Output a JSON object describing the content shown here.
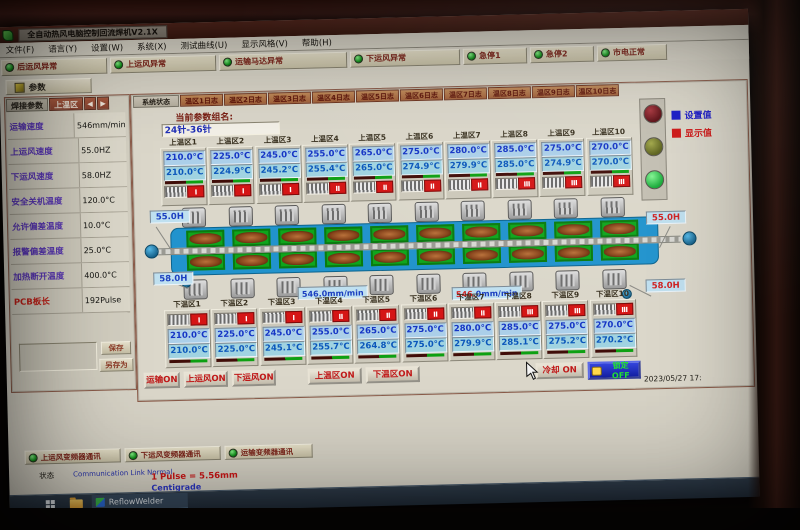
{
  "window": {
    "title": "全自动热风电脑控制回流焊机V2.1X",
    "menu_items": [
      "文件(F)",
      "语言(Y)",
      "设置(W)",
      "系统(X)",
      "测试曲线(U)",
      "显示风格(V)",
      "帮助(H)"
    ],
    "alarm_buttons": [
      "后运风异常",
      "上运风异常",
      "运输马达异常",
      "下运风异常",
      "急停1",
      "急停2",
      "市电正常"
    ],
    "params_button": "参数"
  },
  "icons": {
    "arrow_left": "◀",
    "arrow_right": "▶"
  },
  "left_panel": {
    "tabs": [
      "焊接参数",
      "上温区"
    ],
    "rows": [
      {
        "label": "运输速度",
        "value": "546mm/min"
      },
      {
        "label": "上运风速度",
        "value": "55.0HZ"
      },
      {
        "label": "下运风速度",
        "value": "58.0HZ"
      },
      {
        "label": "安全关机温度",
        "value": "120.0°C"
      },
      {
        "label": "允许偏差温度",
        "value": "10.0°C"
      },
      {
        "label": "报警偏差温度",
        "value": "25.0°C"
      },
      {
        "label": "加热断开温度",
        "value": "400.0°C"
      },
      {
        "label": "PCB板长",
        "value": "192Pulse",
        "highlight": true
      }
    ],
    "save_button": "保存",
    "save_as_button": "另存为"
  },
  "main": {
    "tabs": [
      "系统状态",
      "温区1日志",
      "温区2日志",
      "温区3日志",
      "温区4日志",
      "温区5日志",
      "温区6日志",
      "温区7日志",
      "温区8日志",
      "温区9日志",
      "温区10日志"
    ],
    "param_group_label": "当前参数组名:",
    "param_group_value": "24针-36针",
    "legend": {
      "set": "设置值",
      "display": "显示值",
      "set_color": "#1717c9",
      "display_color": "#cf1414"
    },
    "upper_zones": [
      {
        "name": "上温区1",
        "set": "210.0°C",
        "disp": "210.0°C",
        "grade": "I"
      },
      {
        "name": "上温区2",
        "set": "225.0°C",
        "disp": "224.9°C",
        "grade": "I"
      },
      {
        "name": "上温区3",
        "set": "245.0°C",
        "disp": "245.2°C",
        "grade": "I"
      },
      {
        "name": "上温区4",
        "set": "255.0°C",
        "disp": "255.4°C",
        "grade": "II"
      },
      {
        "name": "上温区5",
        "set": "265.0°C",
        "disp": "265.0°C",
        "grade": "II"
      },
      {
        "name": "上温区6",
        "set": "275.0°C",
        "disp": "274.9°C",
        "grade": "II"
      },
      {
        "name": "上温区7",
        "set": "280.0°C",
        "disp": "279.9°C",
        "grade": "II"
      },
      {
        "name": "上温区8",
        "set": "285.0°C",
        "disp": "285.0°C",
        "grade": "III"
      },
      {
        "name": "上温区9",
        "set": "275.0°C",
        "disp": "274.9°C",
        "grade": "III"
      },
      {
        "name": "上温区10",
        "set": "270.0°C",
        "disp": "270.0°C",
        "grade": "III"
      }
    ],
    "lower_zones": [
      {
        "name": "下温区1",
        "set": "210.0°C",
        "disp": "210.0°C",
        "grade": "I"
      },
      {
        "name": "下温区2",
        "set": "225.0°C",
        "disp": "225.0°C",
        "grade": "I"
      },
      {
        "name": "下温区3",
        "set": "245.0°C",
        "disp": "245.1°C",
        "grade": "I"
      },
      {
        "name": "下温区4",
        "set": "255.0°C",
        "disp": "255.7°C",
        "grade": "II"
      },
      {
        "name": "下温区5",
        "set": "265.0°C",
        "disp": "264.8°C",
        "grade": "II"
      },
      {
        "name": "下温区6",
        "set": "275.0°C",
        "disp": "275.0°C",
        "grade": "II"
      },
      {
        "name": "下温区7",
        "set": "280.0°C",
        "disp": "279.9°C",
        "grade": "II"
      },
      {
        "name": "下温区8",
        "set": "285.0°C",
        "disp": "285.1°C",
        "grade": "III"
      },
      {
        "name": "下温区9",
        "set": "275.0°C",
        "disp": "275.2°C",
        "grade": "III"
      },
      {
        "name": "下温区10",
        "set": "270.0°C",
        "disp": "270.2°C",
        "grade": "III"
      }
    ],
    "conveyor": {
      "upper_fan_speed": "55.0H",
      "lower_fan_speed": "58.0H",
      "belt_speed": "546.0mm/min",
      "belt_speed2_red": "546.",
      "belt_speed2_blue": "0mm/min"
    },
    "bottom_buttons": [
      "运输ON",
      "上运风ON",
      "下运风ON",
      "上温区ON",
      "下温区ON",
      "冷却 ON"
    ],
    "lock_button": "锁定 OFF",
    "datetime": "2023/05/27 17:"
  },
  "statusbar": {
    "comm_buttons": [
      "上运风变频器通讯",
      "下运风变频器通讯",
      "运输变频器通讯"
    ],
    "state_label": "状态",
    "link_status": "Communication Link Normal",
    "pulse_info": "1 Pulse = 5.56mm",
    "unit_info": "Centigrade"
  },
  "taskbar": {
    "app_name": "ReflowWelder"
  }
}
